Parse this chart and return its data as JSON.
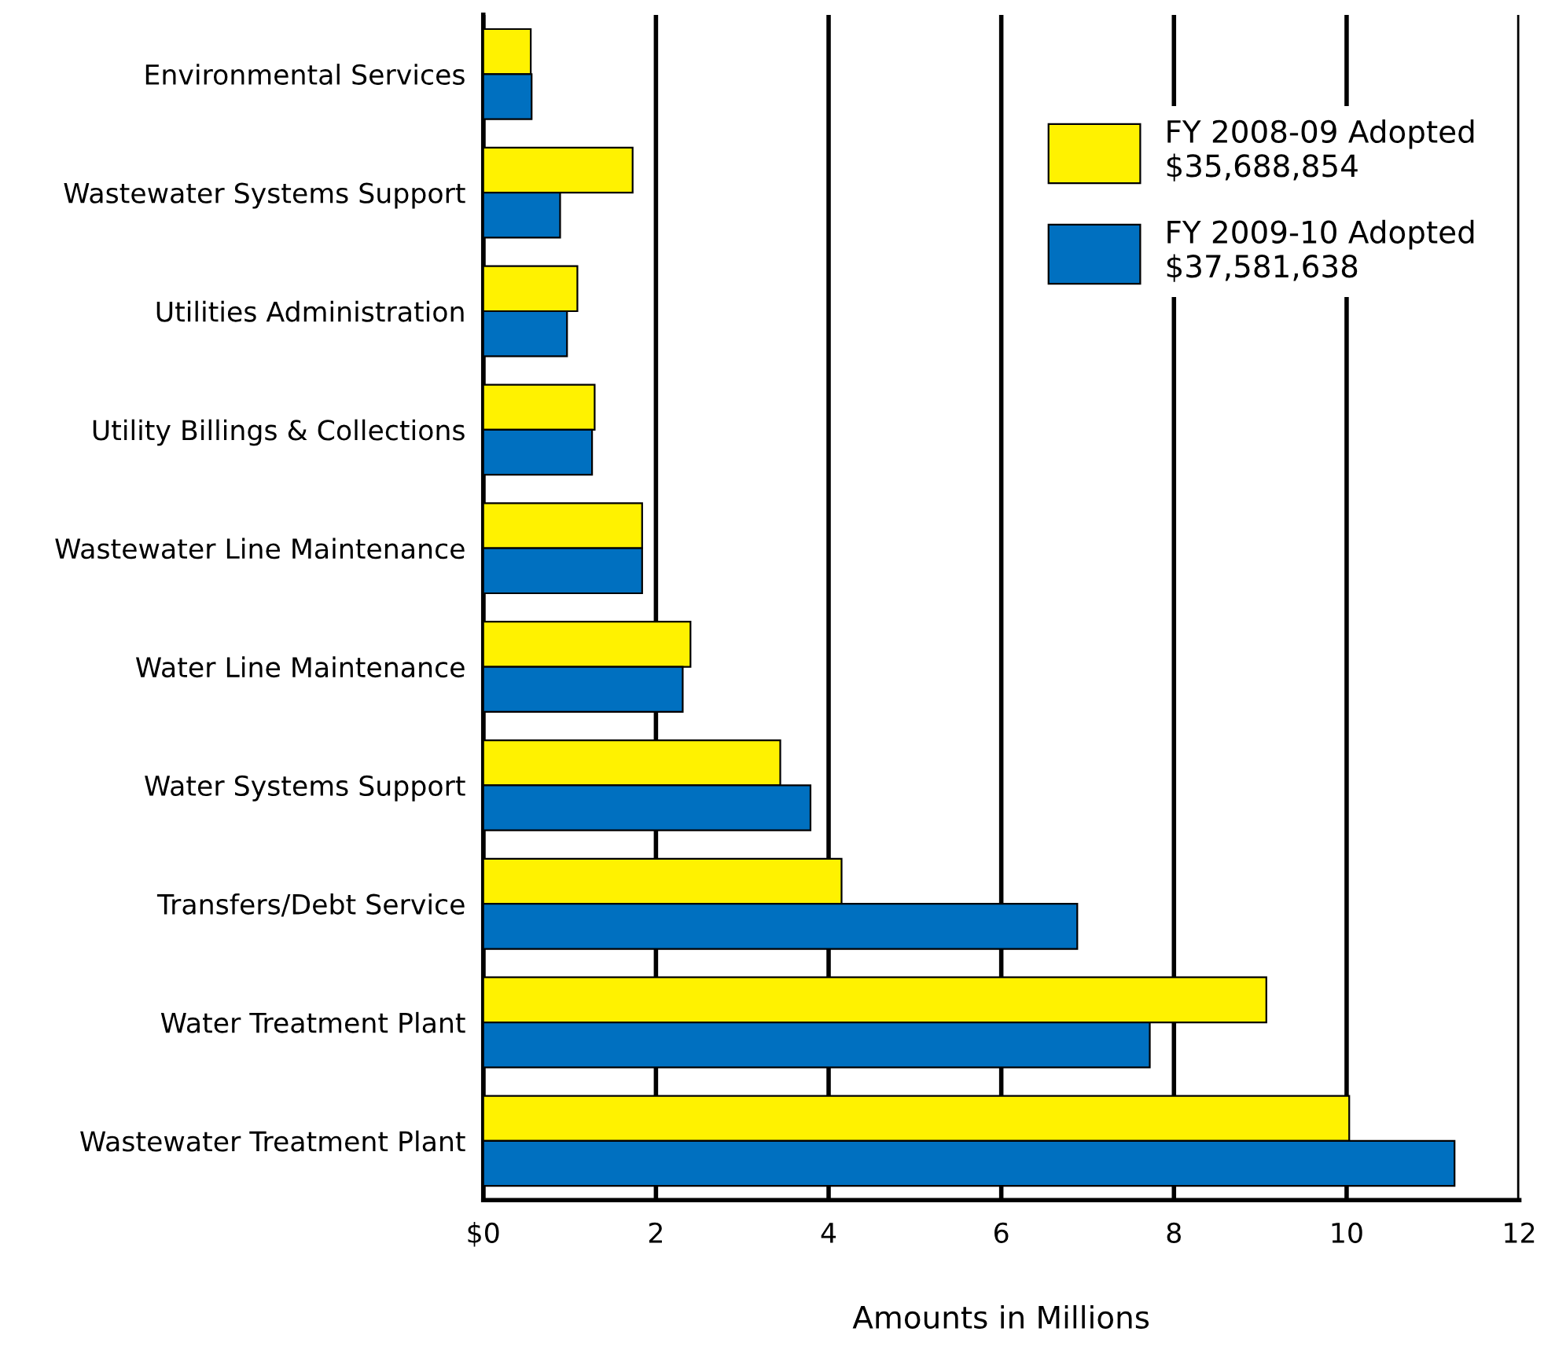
{
  "chart_data": {
    "type": "bar",
    "orientation": "horizontal",
    "xlabel": "Amounts in Millions",
    "categories": [
      "Environmental Services",
      "Wastewater Systems Support",
      "Utilities Administration",
      "Utility Billings & Collections",
      "Wastewater Line Maintenance",
      "Water Line Maintenance",
      "Water Systems Support",
      "Transfers/Debt Service",
      "Water Treatment Plant",
      "Wastewater Treatment Plant"
    ],
    "series": [
      {
        "name": "FY 2008-09 Adopted\n$35,688,854",
        "color": "#fff200",
        "values": [
          0.55,
          1.73,
          1.09,
          1.29,
          1.84,
          2.4,
          3.44,
          4.15,
          9.07,
          10.03
        ]
      },
      {
        "name": "FY 2009-10 Adopted\n$37,581,638",
        "color": "#0070c0",
        "values": [
          0.56,
          0.89,
          0.97,
          1.26,
          1.84,
          2.31,
          3.79,
          6.88,
          7.72,
          11.25
        ]
      }
    ],
    "xlim": [
      0,
      12
    ],
    "xticks": [
      {
        "value": 0,
        "label": "$0"
      },
      2,
      4,
      6,
      8,
      10,
      12
    ],
    "grid": "x",
    "legend": "top right"
  }
}
